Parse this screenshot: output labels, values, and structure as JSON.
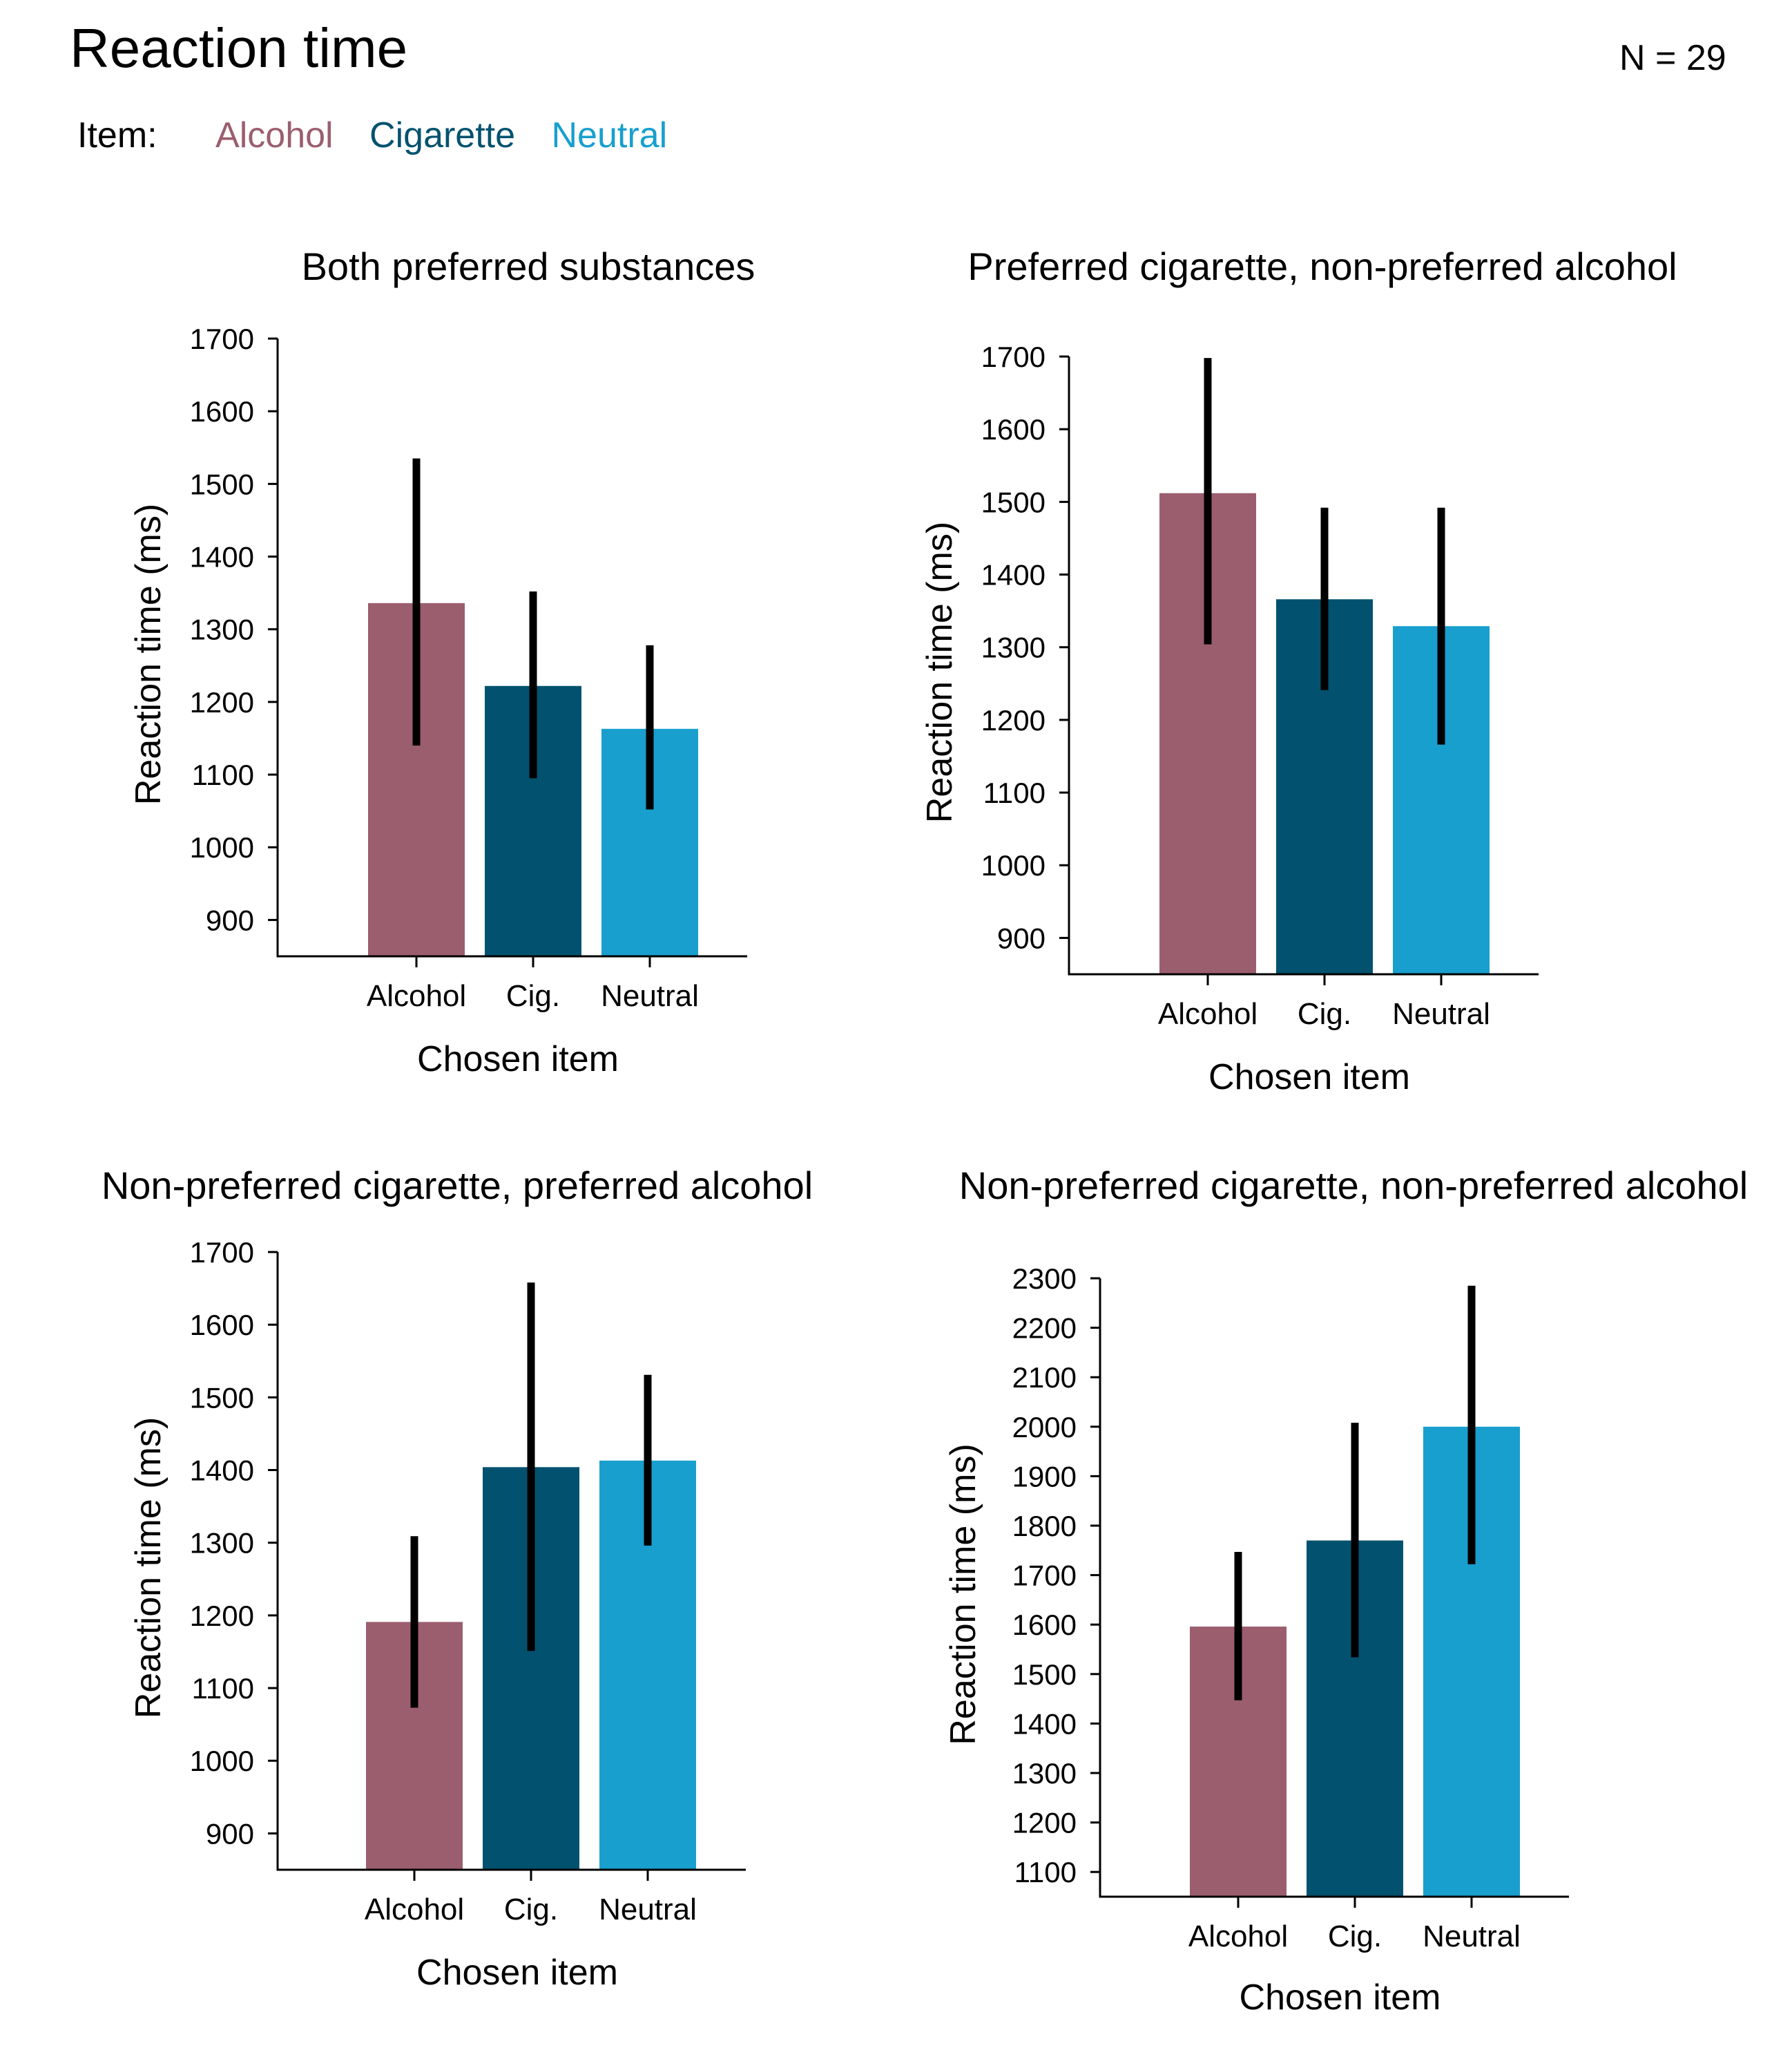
{
  "title": "Reaction time",
  "n_label": "N = 29",
  "legend": {
    "label": "Item:",
    "items": [
      {
        "name": "Alcohol",
        "color": "#9b5e6f"
      },
      {
        "name": "Cigarette",
        "color": "#02526f"
      },
      {
        "name": "Neutral",
        "color": "#189fce"
      }
    ]
  },
  "chart_data": [
    {
      "type": "bar",
      "title": "Both preferred substances",
      "xlabel": "Chosen item",
      "ylabel": "Reaction time (ms)",
      "categories": [
        "Alcohol",
        "Cig.",
        "Neutral"
      ],
      "values": [
        1336,
        1222,
        1163
      ],
      "error_low": [
        1140,
        1095,
        1052
      ],
      "error_high": [
        1535,
        1352,
        1278
      ],
      "ylim": [
        850,
        1700
      ],
      "yticks": [
        900,
        1000,
        1100,
        1200,
        1300,
        1400,
        1500,
        1600,
        1700
      ],
      "colors": [
        "#9b5e6f",
        "#02526f",
        "#189fce"
      ]
    },
    {
      "type": "bar",
      "title": "Preferred cigarette, non-preferred alcohol",
      "xlabel": "Chosen item",
      "ylabel": "Reaction time (ms)",
      "categories": [
        "Alcohol",
        "Cig.",
        "Neutral"
      ],
      "values": [
        1512,
        1366,
        1329
      ],
      "error_low": [
        1304,
        1241,
        1166
      ],
      "error_high": [
        1698,
        1492,
        1492
      ],
      "ylim": [
        850,
        1700
      ],
      "yticks": [
        900,
        1000,
        1100,
        1200,
        1300,
        1400,
        1500,
        1600,
        1700
      ],
      "colors": [
        "#9b5e6f",
        "#02526f",
        "#189fce"
      ]
    },
    {
      "type": "bar",
      "title": "Non-preferred cigarette, preferred alcohol",
      "xlabel": "Chosen item",
      "ylabel": "Reaction time (ms)",
      "categories": [
        "Alcohol",
        "Cig.",
        "Neutral"
      ],
      "values": [
        1191,
        1404,
        1413
      ],
      "error_low": [
        1073,
        1151,
        1296
      ],
      "error_high": [
        1309,
        1658,
        1531
      ],
      "ylim": [
        850,
        1700
      ],
      "yticks": [
        900,
        1000,
        1100,
        1200,
        1300,
        1400,
        1500,
        1600,
        1700
      ],
      "colors": [
        "#9b5e6f",
        "#02526f",
        "#189fce"
      ]
    },
    {
      "type": "bar",
      "title": "Non-preferred cigarette, non-preferred alcohol",
      "xlabel": "Chosen item",
      "ylabel": "Reaction time (ms)",
      "categories": [
        "Alcohol",
        "Cig.",
        "Neutral"
      ],
      "values": [
        1596,
        1770,
        2000
      ],
      "error_low": [
        1447,
        1534,
        1722
      ],
      "error_high": [
        1747,
        2008,
        2285
      ],
      "ylim": [
        1050,
        2300
      ],
      "yticks": [
        1100,
        1200,
        1300,
        1400,
        1500,
        1600,
        1700,
        1800,
        1900,
        2000,
        2100,
        2200,
        2300
      ],
      "colors": [
        "#9b5e6f",
        "#02526f",
        "#189fce"
      ]
    }
  ]
}
